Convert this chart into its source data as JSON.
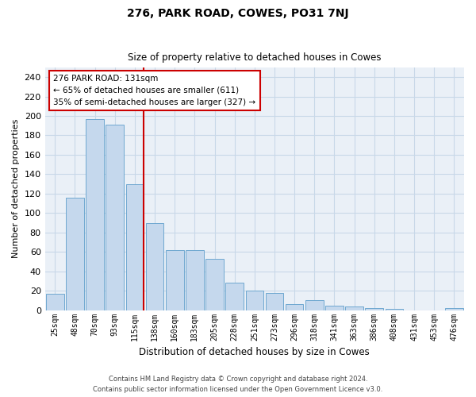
{
  "title": "276, PARK ROAD, COWES, PO31 7NJ",
  "subtitle": "Size of property relative to detached houses in Cowes",
  "xlabel": "Distribution of detached houses by size in Cowes",
  "ylabel": "Number of detached properties",
  "categories": [
    "25sqm",
    "48sqm",
    "70sqm",
    "93sqm",
    "115sqm",
    "138sqm",
    "160sqm",
    "183sqm",
    "205sqm",
    "228sqm",
    "251sqm",
    "273sqm",
    "296sqm",
    "318sqm",
    "341sqm",
    "363sqm",
    "386sqm",
    "408sqm",
    "431sqm",
    "453sqm",
    "476sqm"
  ],
  "values": [
    17,
    116,
    197,
    191,
    130,
    90,
    62,
    62,
    53,
    28,
    20,
    18,
    6,
    10,
    5,
    4,
    2,
    1,
    0,
    0,
    2
  ],
  "bar_color": "#c5d8ed",
  "bar_edge_color": "#6fa8d0",
  "grid_color": "#c8d8e8",
  "bg_color": "#eaf0f7",
  "marker_label": "276 PARK ROAD: 131sqm",
  "marker_line1": "← 65% of detached houses are smaller (611)",
  "marker_line2": "35% of semi-detached houses are larger (327) →",
  "annotation_box_color": "#ffffff",
  "annotation_border_color": "#cc0000",
  "vline_color": "#cc0000",
  "footer1": "Contains HM Land Registry data © Crown copyright and database right 2024.",
  "footer2": "Contains public sector information licensed under the Open Government Licence v3.0.",
  "ylim": [
    0,
    250
  ],
  "yticks": [
    0,
    20,
    40,
    60,
    80,
    100,
    120,
    140,
    160,
    180,
    200,
    220,
    240
  ],
  "vline_x": 4.45
}
